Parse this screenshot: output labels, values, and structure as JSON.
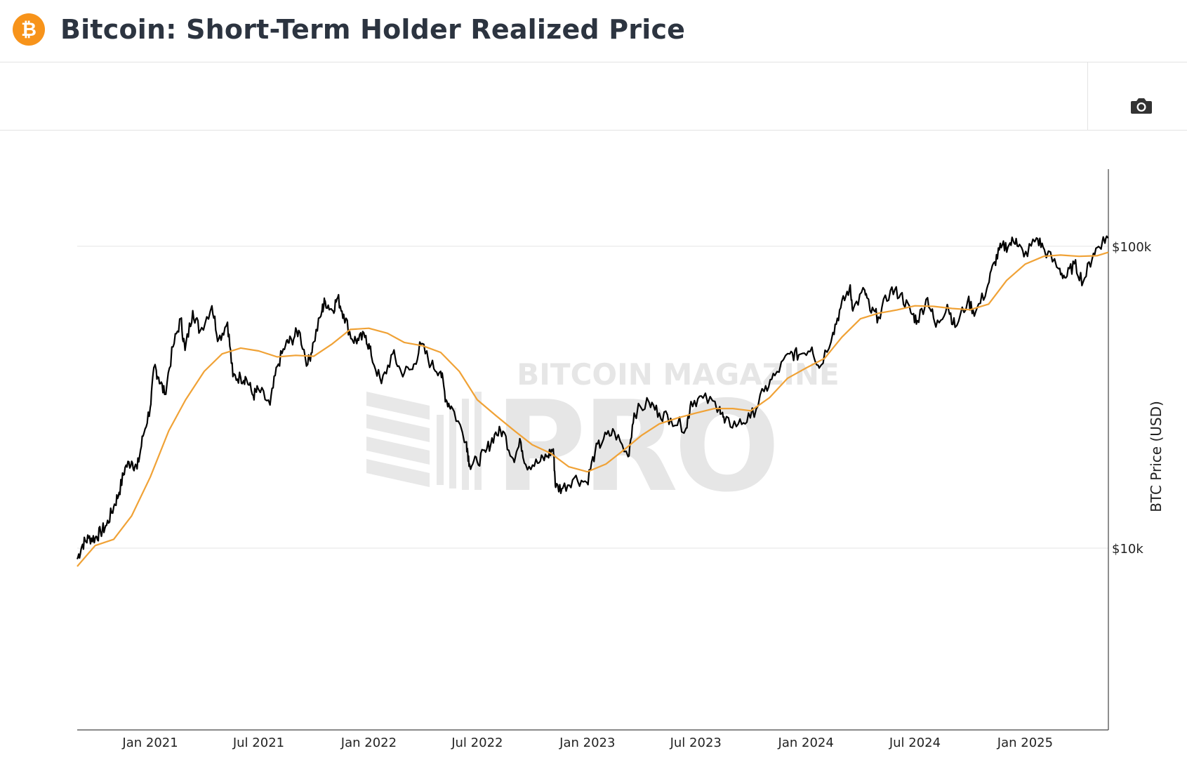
{
  "header": {
    "title": "Bitcoin: Short-Term Holder Realized Price",
    "logo_icon": "bitcoin-logo-icon",
    "logo_glyph": "₿"
  },
  "toolbar": {
    "camera_icon": "camera-icon"
  },
  "watermark": {
    "line1": "BITCOIN MAGAZINE",
    "line2": "PRO"
  },
  "colors": {
    "price": "#000000",
    "realized": "#f0a236",
    "grid": "#e4e4e4",
    "brand": "#f7931a"
  },
  "chart_data": {
    "type": "line",
    "title": "Bitcoin: Short-Term Holder Realized Price",
    "ylabel": "BTC Price (USD)",
    "yscale": "log",
    "ylim": [
      2500,
      180000
    ],
    "xlim": [
      "2020-09-01",
      "2025-05-20"
    ],
    "y_ticks": [
      {
        "value": 10000,
        "label": "$10k"
      },
      {
        "value": 100000,
        "label": "$100k"
      }
    ],
    "x_ticks": [
      {
        "date": "2021-01-01",
        "label": "Jan 2021"
      },
      {
        "date": "2021-07-01",
        "label": "Jul 2021"
      },
      {
        "date": "2022-01-01",
        "label": "Jan 2022"
      },
      {
        "date": "2022-07-01",
        "label": "Jul 2022"
      },
      {
        "date": "2023-01-01",
        "label": "Jan 2023"
      },
      {
        "date": "2023-07-01",
        "label": "Jul 2023"
      },
      {
        "date": "2024-01-01",
        "label": "Jan 2024"
      },
      {
        "date": "2024-07-01",
        "label": "Jul 2024"
      },
      {
        "date": "2025-01-01",
        "label": "Jan 2025"
      }
    ],
    "series": [
      {
        "name": "BTC Price",
        "color": "#000000",
        "points": [
          [
            "2020-09-01",
            9200
          ],
          [
            "2020-09-10",
            10300
          ],
          [
            "2020-09-20",
            10800
          ],
          [
            "2020-10-01",
            10800
          ],
          [
            "2020-10-10",
            11300
          ],
          [
            "2020-10-20",
            11900
          ],
          [
            "2020-11-01",
            13700
          ],
          [
            "2020-11-10",
            15300
          ],
          [
            "2020-11-20",
            18500
          ],
          [
            "2020-12-01",
            19400
          ],
          [
            "2020-12-10",
            18300
          ],
          [
            "2020-12-20",
            23500
          ],
          [
            "2021-01-01",
            29300
          ],
          [
            "2021-01-08",
            40000
          ],
          [
            "2021-01-15",
            36800
          ],
          [
            "2021-01-25",
            32300
          ],
          [
            "2021-02-08",
            46400
          ],
          [
            "2021-02-21",
            57500
          ],
          [
            "2021-02-28",
            45200
          ],
          [
            "2021-03-13",
            61200
          ],
          [
            "2021-03-25",
            52300
          ],
          [
            "2021-04-14",
            63500
          ],
          [
            "2021-04-25",
            49100
          ],
          [
            "2021-05-10",
            56000
          ],
          [
            "2021-05-19",
            37000
          ],
          [
            "2021-06-01",
            36700
          ],
          [
            "2021-06-10",
            36600
          ],
          [
            "2021-06-22",
            32000
          ],
          [
            "2021-07-01",
            33500
          ],
          [
            "2021-07-20",
            29800
          ],
          [
            "2021-08-01",
            40000
          ],
          [
            "2021-08-15",
            47100
          ],
          [
            "2021-08-25",
            48900
          ],
          [
            "2021-09-06",
            52600
          ],
          [
            "2021-09-21",
            40600
          ],
          [
            "2021-10-01",
            48200
          ],
          [
            "2021-10-15",
            61500
          ],
          [
            "2021-10-20",
            65900
          ],
          [
            "2021-11-01",
            61300
          ],
          [
            "2021-11-10",
            67500
          ],
          [
            "2021-11-20",
            59500
          ],
          [
            "2021-12-04",
            49200
          ],
          [
            "2021-12-15",
            48800
          ],
          [
            "2021-12-27",
            50600
          ],
          [
            "2022-01-05",
            43500
          ],
          [
            "2022-01-22",
            35100
          ],
          [
            "2022-02-10",
            44100
          ],
          [
            "2022-02-24",
            38300
          ],
          [
            "2022-03-15",
            39100
          ],
          [
            "2022-03-29",
            47400
          ],
          [
            "2022-04-15",
            40500
          ],
          [
            "2022-05-01",
            38500
          ],
          [
            "2022-05-10",
            31000
          ],
          [
            "2022-05-20",
            29200
          ],
          [
            "2022-06-13",
            22500
          ],
          [
            "2022-06-18",
            19000
          ],
          [
            "2022-07-01",
            19300
          ],
          [
            "2022-07-15",
            20800
          ],
          [
            "2022-07-30",
            23800
          ],
          [
            "2022-08-13",
            24400
          ],
          [
            "2022-08-30",
            19800
          ],
          [
            "2022-09-12",
            22400
          ],
          [
            "2022-09-20",
            18900
          ],
          [
            "2022-10-10",
            19100
          ],
          [
            "2022-10-25",
            20100
          ],
          [
            "2022-11-05",
            21300
          ],
          [
            "2022-11-09",
            15900
          ],
          [
            "2022-11-21",
            15800
          ],
          [
            "2022-12-10",
            17100
          ],
          [
            "2022-12-31",
            16500
          ],
          [
            "2023-01-14",
            20900
          ],
          [
            "2023-01-28",
            23000
          ],
          [
            "2023-02-15",
            24300
          ],
          [
            "2023-03-10",
            20100
          ],
          [
            "2023-03-20",
            28000
          ],
          [
            "2023-04-14",
            30400
          ],
          [
            "2023-05-01",
            28000
          ],
          [
            "2023-05-20",
            26900
          ],
          [
            "2023-06-15",
            25000
          ],
          [
            "2023-06-23",
            30600
          ],
          [
            "2023-07-13",
            31400
          ],
          [
            "2023-08-10",
            29400
          ],
          [
            "2023-08-18",
            26000
          ],
          [
            "2023-09-10",
            25800
          ],
          [
            "2023-09-30",
            27000
          ],
          [
            "2023-10-23",
            33000
          ],
          [
            "2023-11-10",
            37300
          ],
          [
            "2023-12-05",
            44000
          ],
          [
            "2023-12-20",
            43700
          ],
          [
            "2024-01-11",
            46300
          ],
          [
            "2024-01-23",
            39500
          ],
          [
            "2024-02-15",
            51800
          ],
          [
            "2024-02-28",
            62500
          ],
          [
            "2024-03-14",
            73000
          ],
          [
            "2024-03-20",
            62000
          ],
          [
            "2024-04-08",
            71600
          ],
          [
            "2024-04-17",
            61200
          ],
          [
            "2024-05-01",
            58300
          ],
          [
            "2024-05-21",
            71400
          ],
          [
            "2024-06-07",
            69400
          ],
          [
            "2024-06-24",
            60300
          ],
          [
            "2024-07-05",
            56700
          ],
          [
            "2024-07-22",
            67500
          ],
          [
            "2024-08-05",
            54000
          ],
          [
            "2024-08-24",
            64100
          ],
          [
            "2024-09-06",
            53900
          ],
          [
            "2024-09-27",
            65800
          ],
          [
            "2024-10-10",
            60300
          ],
          [
            "2024-10-29",
            72300
          ],
          [
            "2024-11-11",
            88700
          ],
          [
            "2024-11-22",
            98900
          ],
          [
            "2024-12-05",
            101000
          ],
          [
            "2024-12-17",
            106000
          ],
          [
            "2024-12-30",
            92300
          ],
          [
            "2025-01-20",
            106500
          ],
          [
            "2025-02-02",
            97600
          ],
          [
            "2025-02-26",
            84200
          ],
          [
            "2025-03-10",
            78600
          ],
          [
            "2025-03-24",
            87500
          ],
          [
            "2025-04-08",
            76300
          ],
          [
            "2025-04-25",
            94700
          ],
          [
            "2025-05-10",
            104000
          ],
          [
            "2025-05-20",
            106800
          ]
        ]
      },
      {
        "name": "Short-Term Holder Realized Price",
        "color": "#f0a236",
        "points": [
          [
            "2020-09-01",
            8700
          ],
          [
            "2020-10-01",
            10200
          ],
          [
            "2020-11-01",
            10700
          ],
          [
            "2020-12-01",
            12800
          ],
          [
            "2021-01-01",
            17200
          ],
          [
            "2021-02-01",
            24500
          ],
          [
            "2021-03-01",
            31000
          ],
          [
            "2021-04-01",
            38500
          ],
          [
            "2021-05-01",
            44000
          ],
          [
            "2021-06-01",
            46000
          ],
          [
            "2021-07-01",
            45000
          ],
          [
            "2021-08-01",
            43000
          ],
          [
            "2021-09-01",
            43500
          ],
          [
            "2021-10-01",
            43200
          ],
          [
            "2021-11-01",
            47500
          ],
          [
            "2021-12-01",
            53000
          ],
          [
            "2022-01-01",
            53500
          ],
          [
            "2022-02-01",
            51500
          ],
          [
            "2022-03-01",
            48000
          ],
          [
            "2022-04-01",
            46800
          ],
          [
            "2022-05-01",
            44500
          ],
          [
            "2022-06-01",
            38500
          ],
          [
            "2022-07-01",
            31000
          ],
          [
            "2022-08-01",
            27500
          ],
          [
            "2022-09-01",
            24500
          ],
          [
            "2022-10-01",
            22000
          ],
          [
            "2022-11-01",
            20600
          ],
          [
            "2022-12-01",
            18600
          ],
          [
            "2023-01-01",
            17900
          ],
          [
            "2023-02-01",
            19000
          ],
          [
            "2023-03-01",
            21000
          ],
          [
            "2023-04-01",
            23600
          ],
          [
            "2023-05-01",
            25800
          ],
          [
            "2023-06-01",
            27000
          ],
          [
            "2023-07-01",
            28000
          ],
          [
            "2023-08-01",
            29000
          ],
          [
            "2023-09-01",
            29000
          ],
          [
            "2023-10-01",
            28500
          ],
          [
            "2023-11-01",
            31500
          ],
          [
            "2023-12-01",
            36500
          ],
          [
            "2024-01-01",
            39500
          ],
          [
            "2024-02-01",
            42500
          ],
          [
            "2024-03-01",
            50000
          ],
          [
            "2024-04-01",
            57500
          ],
          [
            "2024-05-01",
            60000
          ],
          [
            "2024-06-01",
            61500
          ],
          [
            "2024-07-01",
            63500
          ],
          [
            "2024-08-01",
            63200
          ],
          [
            "2024-09-01",
            62200
          ],
          [
            "2024-10-01",
            61600
          ],
          [
            "2024-11-01",
            64300
          ],
          [
            "2024-12-01",
            77000
          ],
          [
            "2025-01-01",
            87200
          ],
          [
            "2025-02-01",
            92600
          ],
          [
            "2025-03-01",
            93500
          ],
          [
            "2025-04-01",
            92600
          ],
          [
            "2025-05-01",
            93000
          ],
          [
            "2025-05-20",
            95500
          ]
        ]
      }
    ]
  }
}
